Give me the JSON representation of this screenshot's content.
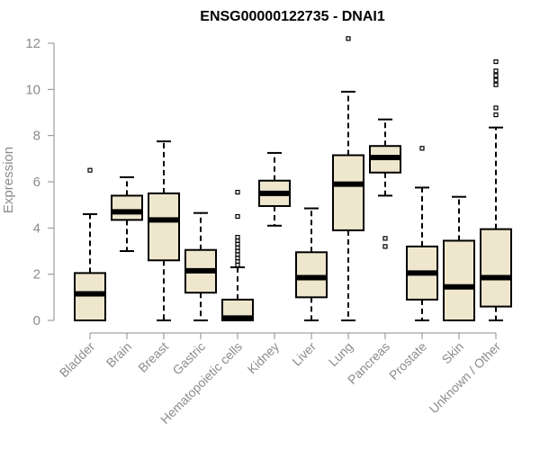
{
  "chart_data": {
    "type": "boxplot",
    "title": "ENSG00000122735 - DNAI1",
    "ylabel": "Expression",
    "xlabel": "",
    "ylim": [
      0,
      12
    ],
    "yticks": [
      0,
      2,
      4,
      6,
      8,
      10,
      12
    ],
    "grid": false,
    "colors": {
      "box_fill": "#efe7cd",
      "box_stroke": "#000000",
      "axis": "#8c8c8c"
    },
    "categories": [
      "Bladder",
      "Brain",
      "Breast",
      "Gastric",
      "Hematopoietic cells",
      "Kidney",
      "Liver",
      "Lung",
      "Pancreas",
      "Prostate",
      "Skin",
      "Unknown / Other"
    ],
    "boxes": [
      {
        "category": "Bladder",
        "whisker_low": 0,
        "q1": 0,
        "median": 1.15,
        "q3": 2.05,
        "whisker_high": 4.6,
        "outliers": [
          6.5
        ]
      },
      {
        "category": "Brain",
        "whisker_low": 3.0,
        "q1": 4.35,
        "median": 4.7,
        "q3": 5.4,
        "whisker_high": 6.2,
        "outliers": []
      },
      {
        "category": "Breast",
        "whisker_low": 0,
        "q1": 2.6,
        "median": 4.35,
        "q3": 5.5,
        "whisker_high": 7.75,
        "outliers": []
      },
      {
        "category": "Gastric",
        "whisker_low": 0,
        "q1": 1.2,
        "median": 2.15,
        "q3": 3.05,
        "whisker_high": 4.65,
        "outliers": []
      },
      {
        "category": "Hematopoietic cells",
        "whisker_low": 0,
        "q1": 0,
        "median": 0.1,
        "q3": 0.9,
        "whisker_high": 2.3,
        "outliers": [
          2.4,
          2.55,
          2.7,
          2.85,
          3.0,
          3.15,
          3.3,
          3.45,
          3.6,
          4.5,
          5.55
        ]
      },
      {
        "category": "Kidney",
        "whisker_low": 4.1,
        "q1": 4.95,
        "median": 5.5,
        "q3": 6.05,
        "whisker_high": 7.25,
        "outliers": []
      },
      {
        "category": "Liver",
        "whisker_low": 0,
        "q1": 1.0,
        "median": 1.85,
        "q3": 2.95,
        "whisker_high": 4.85,
        "outliers": []
      },
      {
        "category": "Lung",
        "whisker_low": 0,
        "q1": 3.9,
        "median": 5.9,
        "q3": 7.15,
        "whisker_high": 9.9,
        "outliers": [
          12.2
        ]
      },
      {
        "category": "Pancreas",
        "whisker_low": 5.4,
        "q1": 6.4,
        "median": 7.05,
        "q3": 7.55,
        "whisker_high": 8.7,
        "outliers": [
          3.2,
          3.55
        ]
      },
      {
        "category": "Prostate",
        "whisker_low": 0,
        "q1": 0.9,
        "median": 2.05,
        "q3": 3.2,
        "whisker_high": 5.75,
        "outliers": [
          7.45
        ]
      },
      {
        "category": "Skin",
        "whisker_low": 0,
        "q1": 0,
        "median": 1.45,
        "q3": 3.45,
        "whisker_high": 5.35,
        "outliers": []
      },
      {
        "category": "Unknown / Other",
        "whisker_low": 0,
        "q1": 0.6,
        "median": 1.85,
        "q3": 3.95,
        "whisker_high": 8.35,
        "outliers": [
          8.9,
          9.2,
          10.2,
          10.4,
          10.6,
          10.8,
          11.2
        ]
      }
    ]
  }
}
